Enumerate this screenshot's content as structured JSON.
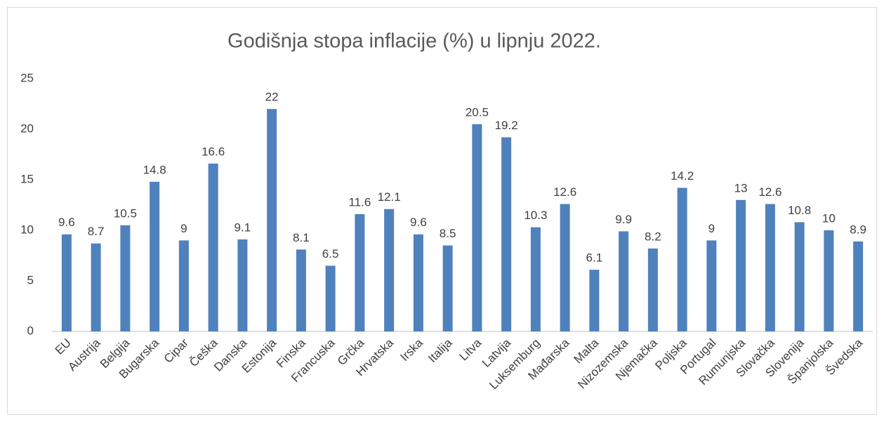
{
  "chart_data": {
    "type": "bar",
    "title": "Godišnja stopa inflacije (%) u lipnju 2022.",
    "categories": [
      "EU",
      "Austrija",
      "Belgija",
      "Bugarska",
      "Cipar",
      "Češka",
      "Danska",
      "Estonija",
      "Finska",
      "Francuska",
      "Grčka",
      "Hrvatska",
      "Irska",
      "Italija",
      "Litva",
      "Latvija",
      "Luksemburg",
      "Mađarska",
      "Malta",
      "Nizozemska",
      "Njemačka",
      "Poljska",
      "Portugal",
      "Rumunjska",
      "Slovačka",
      "Slovenija",
      "Španjolska",
      "Švedska"
    ],
    "values": [
      9.6,
      8.7,
      10.5,
      14.8,
      9,
      16.6,
      9.1,
      22,
      8.1,
      6.5,
      11.6,
      12.1,
      9.6,
      8.5,
      20.5,
      19.2,
      10.3,
      12.6,
      6.1,
      9.9,
      8.2,
      14.2,
      9,
      13,
      12.6,
      10.8,
      10,
      8.9
    ],
    "color": "#4f81bd",
    "ylim": [
      0,
      25
    ],
    "yticks": [
      0,
      5,
      10,
      15,
      20,
      25
    ],
    "grid": false
  }
}
